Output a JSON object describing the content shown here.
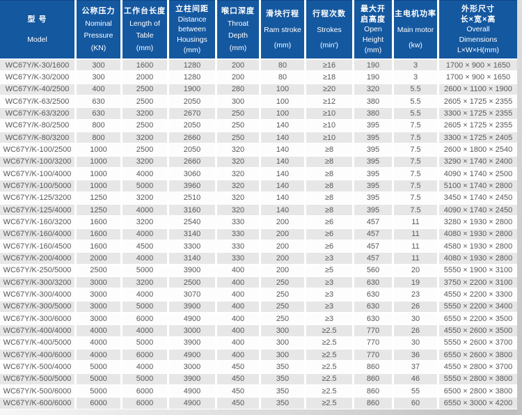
{
  "table": {
    "columns": [
      {
        "id": "model",
        "lines": [
          "型 号",
          "Model"
        ]
      },
      {
        "id": "nominal-pressure",
        "lines": [
          "公称压力",
          "Nominal",
          "Pressure",
          "(KN)"
        ]
      },
      {
        "id": "table-length",
        "lines": [
          "工作台长度",
          "Length of",
          "Table",
          "(mm)"
        ]
      },
      {
        "id": "housing-distance",
        "lines": [
          "立柱间距",
          "Distance",
          "between",
          "Housings",
          "(mm)"
        ]
      },
      {
        "id": "throat-depth",
        "lines": [
          "喉口深度",
          "Throat",
          "Depth",
          "(mm)"
        ]
      },
      {
        "id": "ram-stroke",
        "lines": [
          "滑块行程",
          "Ram stroke",
          "(mm)"
        ]
      },
      {
        "id": "strokes",
        "lines": [
          "行程次数",
          "Strokes",
          "(min')"
        ]
      },
      {
        "id": "open-height",
        "lines": [
          "最大开",
          "启高度",
          "Open",
          "Height",
          "(mm)"
        ]
      },
      {
        "id": "main-motor",
        "lines": [
          "主电机功率",
          "Main motor",
          "(kw)"
        ]
      },
      {
        "id": "dimensions",
        "lines": [
          "外形尺寸",
          "长×宽×高",
          "Overall",
          "Dimensions",
          "L×W×H(mm)"
        ]
      }
    ],
    "rows": [
      [
        "WC67Y/K-30/1600",
        "300",
        "1600",
        "1280",
        "200",
        "80",
        "≥16",
        "190",
        "3",
        "1700 × 900 × 1650"
      ],
      [
        "WC67Y/K-30/2000",
        "300",
        "2000",
        "1280",
        "200",
        "80",
        "≥18",
        "190",
        "3",
        "1700 × 900 × 1650"
      ],
      [
        "WC67Y/K-40/2500",
        "400",
        "2500",
        "1900",
        "280",
        "100",
        "≥20",
        "320",
        "5.5",
        "2600 × 1100 × 1900"
      ],
      [
        "WC67Y/K-63/2500",
        "630",
        "2500",
        "2050",
        "300",
        "100",
        "≥12",
        "380",
        "5.5",
        "2605 × 1725 × 2355"
      ],
      [
        "WC67Y/K-63/3200",
        "630",
        "3200",
        "2670",
        "250",
        "100",
        "≥10",
        "380",
        "5.5",
        "3300 × 1725 × 2355"
      ],
      [
        "WC67Y/K-80/2500",
        "800",
        "2500",
        "2050",
        "250",
        "140",
        "≥10",
        "395",
        "7.5",
        "2605 × 1725 × 2355"
      ],
      [
        "WC67Y/K-80/3200",
        "800",
        "3200",
        "2660",
        "250",
        "140",
        "≥10",
        "395",
        "7.5",
        "3300 × 1725 × 2405"
      ],
      [
        "WC67Y/K-100/2500",
        "1000",
        "2500",
        "2050",
        "320",
        "140",
        "≥8",
        "395",
        "7.5",
        "2600 × 1800 × 2540"
      ],
      [
        "WC67Y/K-100/3200",
        "1000",
        "3200",
        "2660",
        "320",
        "140",
        "≥8",
        "395",
        "7.5",
        "3290 × 1740 × 2400"
      ],
      [
        "WC67Y/K-100/4000",
        "1000",
        "4000",
        "3060",
        "320",
        "140",
        "≥8",
        "395",
        "7.5",
        "4090 × 1740 × 2500"
      ],
      [
        "WC67Y/K-100/5000",
        "1000",
        "5000",
        "3960",
        "320",
        "140",
        "≥8",
        "395",
        "7.5",
        "5100 × 1740 × 2800"
      ],
      [
        "WC67Y/K-125/3200",
        "1250",
        "3200",
        "2510",
        "320",
        "140",
        "≥8",
        "395",
        "7.5",
        "3450 × 1740 × 2450"
      ],
      [
        "WC67Y/K-125/4000",
        "1250",
        "4000",
        "3160",
        "320",
        "140",
        "≥8",
        "395",
        "7.5",
        "4090 × 1740 × 2450"
      ],
      [
        "WC67Y/K-160/3200",
        "1600",
        "3200",
        "2540",
        "330",
        "200",
        "≥6",
        "457",
        "11",
        "3280 × 1930 × 2800"
      ],
      [
        "WC67Y/K-160/4000",
        "1600",
        "4000",
        "3140",
        "330",
        "200",
        "≥6",
        "457",
        "11",
        "4080 × 1930 × 2800"
      ],
      [
        "WC67Y/K-160/4500",
        "1600",
        "4500",
        "3300",
        "330",
        "200",
        "≥6",
        "457",
        "11",
        "4580 × 1930 × 2800"
      ],
      [
        "WC67Y/K-200/4000",
        "2000",
        "4000",
        "3140",
        "330",
        "200",
        "≥3",
        "457",
        "11",
        "4080 × 1930 × 2800"
      ],
      [
        "WC67Y/K-250/5000",
        "2500",
        "5000",
        "3900",
        "400",
        "200",
        "≥5",
        "560",
        "20",
        "5550 × 1900 × 3100"
      ],
      [
        "WC67Y/K-300/3200",
        "3000",
        "3200",
        "2500",
        "400",
        "250",
        "≥3",
        "630",
        "19",
        "3750 × 2200 × 3100"
      ],
      [
        "WC67Y/K-300/4000",
        "3000",
        "4000",
        "3070",
        "400",
        "250",
        "≥3",
        "630",
        "23",
        "4550 × 2200 × 3300"
      ],
      [
        "WC67Y/K-300/5000",
        "3000",
        "5000",
        "3900",
        "400",
        "250",
        "≥3",
        "630",
        "26",
        "5550 × 2200 × 3400"
      ],
      [
        "WC67Y/K-300/6000",
        "3000",
        "6000",
        "4900",
        "400",
        "250",
        "≥3",
        "630",
        "30",
        "6550 × 2200 × 3500"
      ],
      [
        "WC67Y/K-400/4000",
        "4000",
        "4000",
        "3000",
        "400",
        "300",
        "≥2.5",
        "770",
        "26",
        "4550 × 2600 × 3500"
      ],
      [
        "WC67Y/K-400/5000",
        "4000",
        "5000",
        "3900",
        "400",
        "300",
        "≥2.5",
        "770",
        "30",
        "5550 × 2600 × 3700"
      ],
      [
        "WC67Y/K-400/6000",
        "4000",
        "6000",
        "4900",
        "400",
        "300",
        "≥2.5",
        "770",
        "36",
        "6550 × 2600 × 3800"
      ],
      [
        "WC67Y/K-500/4000",
        "5000",
        "4000",
        "3000",
        "450",
        "350",
        "≥2.5",
        "860",
        "37",
        "4550 × 2800 × 3700"
      ],
      [
        "WC67Y/K-500/5000",
        "5000",
        "5000",
        "3900",
        "450",
        "350",
        "≥2.5",
        "860",
        "46",
        "5550 × 2800 × 3800"
      ],
      [
        "WC67Y/K-500/6000",
        "5000",
        "6000",
        "4900",
        "450",
        "350",
        "≥2.5",
        "860",
        "55",
        "6500 × 2800 × 3800"
      ],
      [
        "WC67Y/K-600/6000",
        "6000",
        "6000",
        "4900",
        "450",
        "350",
        "≥2.5",
        "860",
        "60",
        "6550 × 3000 × 4200"
      ]
    ]
  },
  "colors": {
    "header_bg": "#1458a0",
    "header_text": "#ffffff",
    "row_stripe_bg": "#e7e7e7",
    "row_bg": "#fdfdfd",
    "cell_text": "#58585a"
  }
}
